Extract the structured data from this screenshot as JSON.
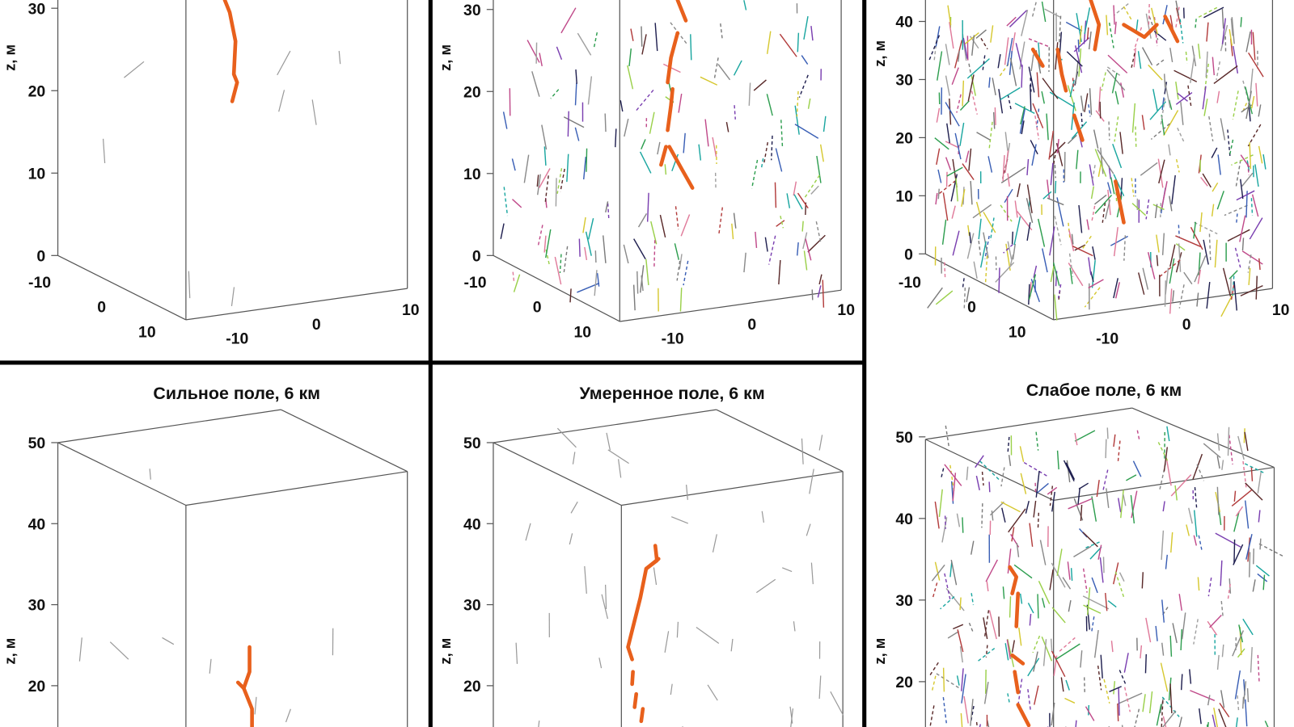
{
  "panels": [
    {
      "z_label": "z, м",
      "z_ticks": [
        30,
        20,
        10,
        0
      ],
      "depth_ticks": [
        -10,
        0,
        10
      ],
      "front_ticks": [
        -10,
        0,
        10
      ]
    },
    {
      "z_label": "z, м",
      "z_ticks": [
        30,
        20,
        10,
        0
      ],
      "depth_ticks": [
        -10,
        0,
        10
      ],
      "front_ticks": [
        -10,
        0,
        10
      ]
    },
    {
      "z_label": "z, м",
      "z_ticks": [
        40,
        30,
        20,
        10,
        0
      ],
      "depth_ticks": [
        -10,
        0,
        10
      ],
      "front_ticks": [
        -10,
        0,
        10
      ]
    },
    {
      "title": "Сильное поле, 6 км",
      "z_label": "z, м",
      "z_ticks": [
        50,
        40,
        30,
        20
      ]
    },
    {
      "title": "Умеренное поле, 6 км",
      "z_label": "z, м",
      "z_ticks": [
        50,
        40,
        30,
        20
      ]
    },
    {
      "title": "Слабое поле, 6 км",
      "z_label": "z, м",
      "z_ticks": [
        50,
        40,
        30,
        20
      ]
    }
  ]
}
